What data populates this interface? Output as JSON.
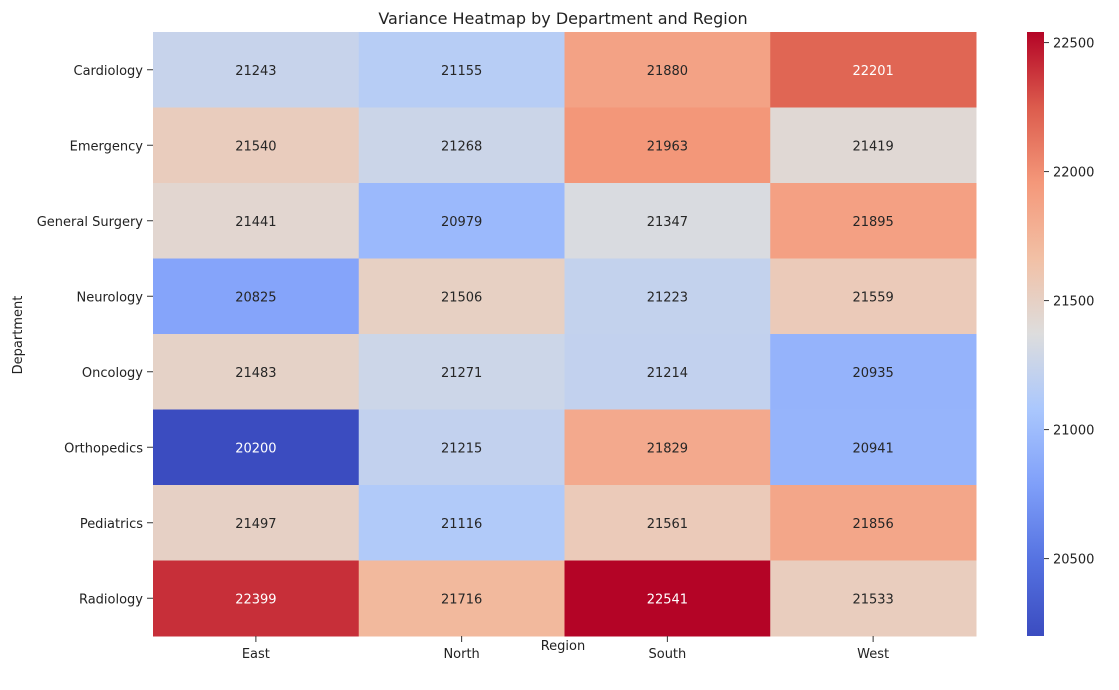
{
  "chart_data": {
    "type": "heatmap",
    "title": "Variance Heatmap by Department and Region",
    "xlabel": "Region",
    "ylabel": "Department",
    "x": [
      "East",
      "North",
      "South",
      "West"
    ],
    "y": [
      "Cardiology",
      "Emergency",
      "General Surgery",
      "Neurology",
      "Oncology",
      "Orthopedics",
      "Pediatrics",
      "Radiology"
    ],
    "values": [
      [
        21243,
        21155,
        21880,
        22201
      ],
      [
        21540,
        21268,
        21963,
        21419
      ],
      [
        21441,
        20979,
        21347,
        21895
      ],
      [
        20825,
        21506,
        21223,
        21559
      ],
      [
        21483,
        21271,
        21214,
        20935
      ],
      [
        20200,
        21215,
        21829,
        20941
      ],
      [
        21497,
        21116,
        21561,
        21856
      ],
      [
        22399,
        21716,
        22541,
        21533
      ]
    ],
    "colormap": "coolwarm",
    "vmin": 20200,
    "vmax": 22541,
    "colorbar_ticks": [
      20500,
      21000,
      21500,
      22000,
      22500
    ],
    "colors": {
      "low": "#3b4cc0",
      "mid": "#dddddd",
      "high": "#b40426"
    }
  }
}
